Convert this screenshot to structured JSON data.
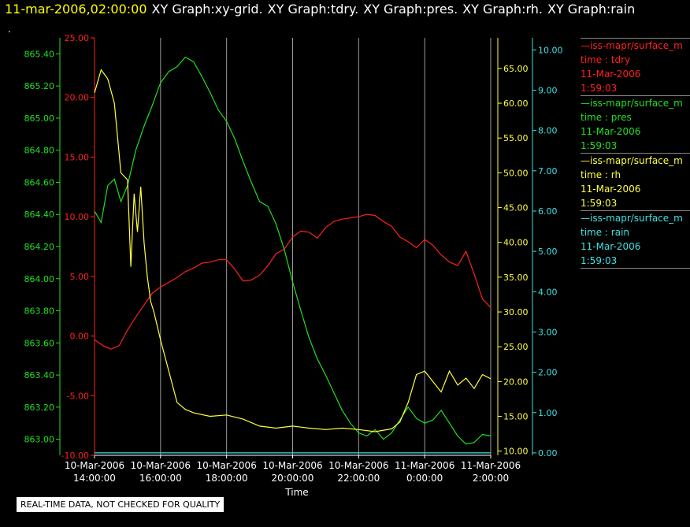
{
  "header": {
    "timestamp": "11-mar-2006,02:00:00",
    "graphs": [
      "XY Graph:xy-grid.",
      "XY Graph:tdry.",
      "XY Graph:pres.",
      "XY Graph:rh.",
      "XY Graph:rain"
    ]
  },
  "stray_mark": ".",
  "footer": {
    "disclaimer": "REAL-TIME DATA, NOT CHECKED FOR QUALITY"
  },
  "legend": [
    {
      "source": "—iss-mapr/surface_m",
      "var": "time : tdry",
      "date": "11-Mar-2006",
      "time": "1:59:03",
      "color": "#ff2020"
    },
    {
      "source": "—iss-mapr/surface_m",
      "var": "time : pres",
      "date": "11-Mar-2006",
      "time": "1:59:03",
      "color": "#20e020"
    },
    {
      "source": "—iss-mapr/surface_m",
      "var": "time : rh",
      "date": "11-Mar-2006",
      "time": "1:59:03",
      "color": "#ffff40"
    },
    {
      "source": "—iss-mapr/surface_m",
      "var": "time : rain",
      "date": "11-Mar-2006",
      "time": "1:59:03",
      "color": "#40e0e0"
    }
  ],
  "chart_data": {
    "type": "line",
    "xlabel": "Time",
    "x_ticks": [
      [
        "10-Mar-2006",
        "14:00:00"
      ],
      [
        "10-Mar-2006",
        "16:00:00"
      ],
      [
        "10-Mar-2006",
        "18:00:00"
      ],
      [
        "10-Mar-2006",
        "20:00:00"
      ],
      [
        "10-Mar-2006",
        "22:00:00"
      ],
      [
        "11-Mar-2006",
        "0:00:00"
      ],
      [
        "11-Mar-2006",
        "2:00:00"
      ]
    ],
    "xlim_hours": [
      0,
      12
    ],
    "grid": "vertical at each x tick",
    "axes": {
      "pres": {
        "color": "#20e020",
        "ylim": [
          862.9,
          865.5
        ],
        "ticks": [
          "863.00",
          "863.20",
          "863.40",
          "863.60",
          "863.80",
          "864.00",
          "864.20",
          "864.40",
          "864.60",
          "864.80",
          "865.00",
          "865.20",
          "865.40"
        ]
      },
      "tdry": {
        "color": "#ff2020",
        "ylim": [
          -10,
          25
        ],
        "ticks": [
          "-10.00",
          "-5.00",
          "0.00",
          "5.00",
          "10.00",
          "15.00",
          "20.00",
          "25.00"
        ]
      },
      "rh": {
        "color": "#ffff40",
        "ylim": [
          9.4,
          69.4
        ],
        "ticks": [
          "10.00",
          "15.00",
          "20.00",
          "25.00",
          "30.00",
          "35.00",
          "40.00",
          "45.00",
          "50.00",
          "55.00",
          "60.00",
          "65.00"
        ]
      },
      "rain": {
        "color": "#40e0e0",
        "ylim": [
          -0.06,
          10.3
        ],
        "ticks": [
          "0.00",
          "1.00",
          "2.00",
          "3.00",
          "4.00",
          "5.00",
          "6.00",
          "7.00",
          "8.00",
          "9.00",
          "10.00"
        ]
      }
    },
    "series": [
      {
        "name": "time : tdry",
        "axis": "tdry",
        "x": [
          0,
          0.25,
          0.5,
          0.75,
          1,
          1.25,
          1.5,
          1.75,
          2,
          2.25,
          2.5,
          2.75,
          3,
          3.25,
          3.5,
          3.75,
          4,
          4.25,
          4.5,
          4.75,
          5,
          5.25,
          5.5,
          5.75,
          6,
          6.25,
          6.5,
          6.75,
          7,
          7.25,
          7.5,
          7.75,
          8,
          8.25,
          8.5,
          8.75,
          9,
          9.25,
          9.5,
          9.75,
          10,
          10.25,
          10.5,
          10.75,
          11,
          11.25,
          11.5,
          11.75,
          12
        ],
        "y": [
          -0.3,
          -0.8,
          -1.1,
          -0.8,
          0.5,
          1.6,
          2.6,
          3.6,
          4.1,
          4.5,
          4.9,
          5.4,
          5.7,
          6.1,
          6.2,
          6.4,
          6.4,
          5.6,
          4.6,
          4.7,
          5.1,
          5.9,
          6.9,
          7.3,
          8.3,
          8.8,
          8.7,
          8.2,
          9.1,
          9.6,
          9.8,
          9.9,
          10,
          10.2,
          10.1,
          9.6,
          9.2,
          8.3,
          7.9,
          7.4,
          8.1,
          7.6,
          6.8,
          6.2,
          5.9,
          7.1,
          5.2,
          3.1,
          2.4
        ]
      },
      {
        "name": "time : pres",
        "axis": "pres",
        "x": [
          0,
          0.2,
          0.4,
          0.6,
          0.8,
          1,
          1.25,
          1.5,
          1.75,
          2,
          2.25,
          2.5,
          2.75,
          3,
          3.25,
          3.5,
          3.75,
          4,
          4.25,
          4.5,
          4.75,
          5,
          5.25,
          5.5,
          5.75,
          6,
          6.25,
          6.5,
          6.75,
          7,
          7.25,
          7.5,
          7.75,
          8,
          8.25,
          8.5,
          8.75,
          9,
          9.25,
          9.5,
          9.75,
          10,
          10.25,
          10.5,
          10.75,
          11,
          11.25,
          11.5,
          11.75,
          12
        ],
        "y": [
          864.42,
          864.35,
          864.58,
          864.62,
          864.48,
          864.58,
          864.8,
          864.95,
          865.08,
          865.22,
          865.29,
          865.32,
          865.38,
          865.35,
          865.26,
          865.16,
          865.05,
          864.98,
          864.87,
          864.73,
          864.6,
          864.48,
          864.45,
          864.34,
          864.18,
          863.98,
          863.8,
          863.63,
          863.5,
          863.4,
          863.29,
          863.18,
          863.1,
          863.04,
          863.02,
          863.06,
          863.0,
          863.04,
          863.12,
          863.2,
          863.13,
          863.1,
          863.12,
          863.18,
          863.1,
          863.02,
          862.97,
          862.98,
          863.03,
          863.02
        ]
      },
      {
        "name": "time : rh",
        "axis": "rh",
        "x": [
          0,
          0.2,
          0.4,
          0.6,
          0.8,
          1,
          1.1,
          1.2,
          1.3,
          1.4,
          1.5,
          1.6,
          1.7,
          1.8,
          1.9,
          2,
          2.25,
          2.5,
          2.75,
          3,
          3.5,
          4,
          4.5,
          5,
          5.5,
          6,
          6.5,
          7,
          7.5,
          8,
          8.5,
          9,
          9.25,
          9.5,
          9.75,
          10,
          10.25,
          10.5,
          10.75,
          11,
          11.25,
          11.5,
          11.75,
          12
        ],
        "y": [
          61.5,
          64.8,
          63.5,
          60,
          50,
          49,
          36.5,
          47,
          41.5,
          48,
          40,
          35,
          31.5,
          30,
          28,
          26,
          21.5,
          17,
          16,
          15.5,
          15,
          15.2,
          14.6,
          13.6,
          13.3,
          13.6,
          13.3,
          13.1,
          13.3,
          13.1,
          12.8,
          13.2,
          14.2,
          17,
          21,
          21.5,
          20,
          18.5,
          21.5,
          19.5,
          20.5,
          19,
          21,
          20.4
        ]
      },
      {
        "name": "time : rain",
        "axis": "rain",
        "x": [
          0,
          12
        ],
        "y": [
          0,
          0
        ]
      }
    ]
  }
}
